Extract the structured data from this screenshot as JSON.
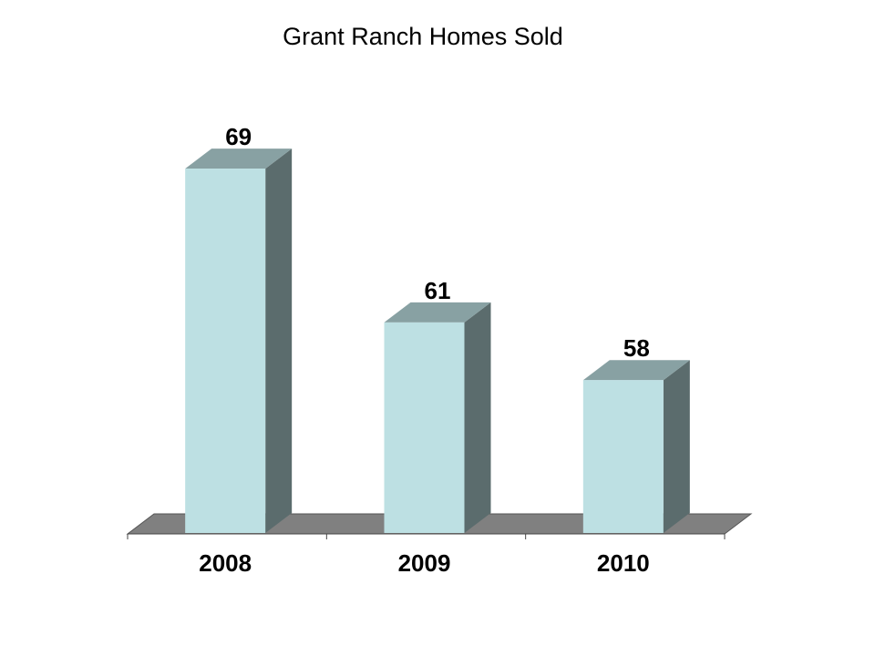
{
  "chart_data": {
    "type": "bar",
    "title": "Grant Ranch Homes Sold",
    "categories": [
      "2008",
      "2009",
      "2010"
    ],
    "values": [
      69,
      61,
      58
    ],
    "color": "#bde0e3",
    "ylim": [
      50,
      70
    ],
    "grid": false
  }
}
